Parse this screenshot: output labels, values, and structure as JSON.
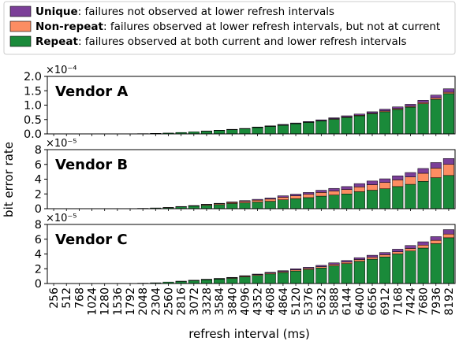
{
  "legend": {
    "entries": [
      {
        "key": "unique",
        "bold": "Unique",
        "rest": ": failures not observed at lower refresh intervals",
        "color": "#7b3f98"
      },
      {
        "key": "nonrepeat",
        "bold": "Non-repeat",
        "rest": ": failures observed at lower refresh intervals, but not at current",
        "color": "#fc8d62"
      },
      {
        "key": "repeat",
        "bold": "Repeat",
        "rest": ": failures observed at both current and lower refresh intervals",
        "color": "#1a8a3a"
      }
    ]
  },
  "chart_data": {
    "type": "bar",
    "stacked": true,
    "xlabel": "refresh interval (ms)",
    "ylabel": "bit error rate",
    "categories": [
      "256",
      "512",
      "768",
      "1024",
      "1280",
      "1536",
      "1792",
      "2048",
      "2304",
      "2560",
      "2816",
      "3072",
      "3328",
      "3584",
      "3840",
      "4096",
      "4352",
      "4608",
      "4864",
      "5120",
      "5376",
      "5632",
      "5888",
      "6144",
      "6400",
      "6656",
      "6912",
      "7168",
      "7424",
      "7680",
      "7936",
      "8192"
    ],
    "stack_order": [
      "repeat",
      "nonrepeat",
      "unique"
    ],
    "panels": [
      {
        "title": "Vendor A",
        "scale_label": "×10⁻⁴",
        "ylim": [
          0,
          2.0
        ],
        "yticks": [
          0,
          0.5,
          1.0,
          1.5,
          2.0
        ],
        "ytick_labels": [
          "0.0",
          "0.5",
          "1.0",
          "1.5",
          "2.0"
        ],
        "series": [
          {
            "name": "Repeat",
            "values": [
              0,
              0,
              0,
              0,
              0,
              0,
              0,
              0.01,
              0.02,
              0.03,
              0.05,
              0.07,
              0.09,
              0.12,
              0.15,
              0.18,
              0.22,
              0.26,
              0.3,
              0.35,
              0.4,
              0.45,
              0.51,
              0.57,
              0.63,
              0.7,
              0.77,
              0.85,
              0.93,
              1.05,
              1.2,
              1.4
            ]
          },
          {
            "name": "Non-repeat",
            "values": [
              0,
              0,
              0,
              0,
              0,
              0,
              0,
              0,
              0,
              0,
              0,
              0,
              0,
              0,
              0,
              0,
              0.01,
              0.01,
              0.01,
              0.01,
              0.01,
              0.01,
              0.02,
              0.02,
              0.02,
              0.02,
              0.03,
              0.03,
              0.03,
              0.04,
              0.05,
              0.05
            ]
          },
          {
            "name": "Unique",
            "values": [
              0,
              0,
              0,
              0,
              0,
              0,
              0,
              0,
              0,
              0,
              0,
              0,
              0.01,
              0.01,
              0.01,
              0.01,
              0.01,
              0.01,
              0.02,
              0.02,
              0.02,
              0.03,
              0.03,
              0.04,
              0.04,
              0.05,
              0.06,
              0.06,
              0.07,
              0.08,
              0.1,
              0.12
            ]
          }
        ]
      },
      {
        "title": "Vendor B",
        "scale_label": "×10⁻⁵",
        "ylim": [
          0,
          8
        ],
        "yticks": [
          0,
          2,
          4,
          6,
          8
        ],
        "ytick_labels": [
          "0",
          "2",
          "4",
          "6",
          "8"
        ],
        "series": [
          {
            "name": "Repeat",
            "values": [
              0,
              0,
              0,
              0,
              0,
              0,
              0,
              0.05,
              0.1,
              0.15,
              0.25,
              0.35,
              0.45,
              0.55,
              0.7,
              0.8,
              0.9,
              1.0,
              1.2,
              1.35,
              1.5,
              1.7,
              1.85,
              2.0,
              2.3,
              2.5,
              2.7,
              3.0,
              3.3,
              3.7,
              4.2,
              4.5
            ]
          },
          {
            "name": "Non-repeat",
            "values": [
              0,
              0,
              0,
              0,
              0,
              0,
              0,
              0,
              0,
              0.02,
              0.03,
              0.05,
              0.1,
              0.12,
              0.15,
              0.2,
              0.25,
              0.3,
              0.35,
              0.4,
              0.45,
              0.5,
              0.55,
              0.6,
              0.65,
              0.75,
              0.85,
              0.9,
              1.0,
              1.1,
              1.3,
              1.5
            ]
          },
          {
            "name": "Unique",
            "values": [
              0,
              0,
              0,
              0,
              0,
              0,
              0,
              0,
              0,
              0,
              0.02,
              0.03,
              0.05,
              0.06,
              0.08,
              0.1,
              0.12,
              0.15,
              0.2,
              0.22,
              0.25,
              0.3,
              0.35,
              0.4,
              0.45,
              0.5,
              0.5,
              0.55,
              0.6,
              0.65,
              0.75,
              0.8
            ]
          }
        ]
      },
      {
        "title": "Vendor C",
        "scale_label": "×10⁻⁵",
        "ylim": [
          0,
          8
        ],
        "yticks": [
          0,
          2,
          4,
          6,
          8
        ],
        "ytick_labels": [
          "0",
          "2",
          "4",
          "6",
          "8"
        ],
        "series": [
          {
            "name": "Repeat",
            "values": [
              0,
              0,
              0,
              0,
              0,
              0,
              0,
              0.05,
              0.1,
              0.2,
              0.3,
              0.4,
              0.5,
              0.6,
              0.7,
              0.9,
              1.1,
              1.3,
              1.5,
              1.7,
              1.9,
              2.1,
              2.4,
              2.7,
              3.0,
              3.3,
              3.6,
              4.0,
              4.4,
              4.8,
              5.4,
              6.2
            ]
          },
          {
            "name": "Non-repeat",
            "values": [
              0,
              0,
              0,
              0,
              0,
              0,
              0,
              0,
              0,
              0,
              0.02,
              0.03,
              0.05,
              0.05,
              0.08,
              0.1,
              0.1,
              0.12,
              0.12,
              0.15,
              0.15,
              0.18,
              0.2,
              0.2,
              0.25,
              0.25,
              0.3,
              0.3,
              0.35,
              0.4,
              0.45,
              0.5
            ]
          },
          {
            "name": "Unique",
            "values": [
              0,
              0,
              0,
              0,
              0,
              0,
              0,
              0,
              0,
              0,
              0,
              0.02,
              0.03,
              0.04,
              0.05,
              0.06,
              0.08,
              0.1,
              0.12,
              0.15,
              0.15,
              0.18,
              0.2,
              0.22,
              0.25,
              0.28,
              0.3,
              0.35,
              0.4,
              0.45,
              0.5,
              0.6
            ]
          }
        ]
      }
    ]
  }
}
